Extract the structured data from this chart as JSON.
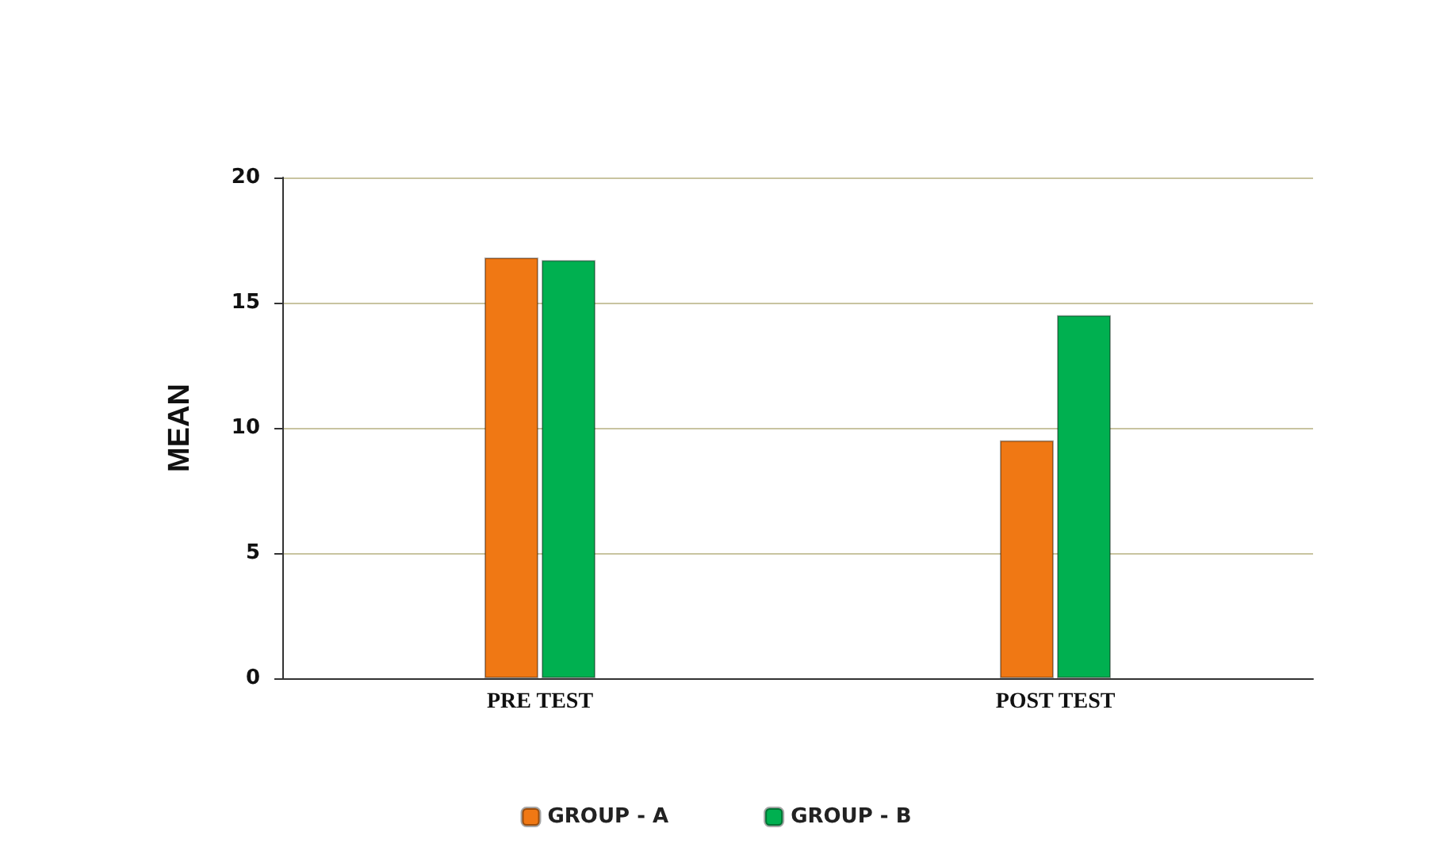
{
  "chart_data": {
    "type": "bar",
    "ylabel": "MEAN",
    "categories": [
      "PRE TEST",
      "POST TEST"
    ],
    "series": [
      {
        "name": "GROUP - A",
        "color": "#f07814",
        "values": [
          16.8,
          9.5
        ]
      },
      {
        "name": "GROUP - B",
        "color": "#00b050",
        "values": [
          16.7,
          14.5
        ]
      }
    ],
    "ylim": [
      0,
      20
    ],
    "yticks": [
      0,
      5,
      10,
      15,
      20
    ],
    "grid": "y",
    "legend": "bottom"
  }
}
